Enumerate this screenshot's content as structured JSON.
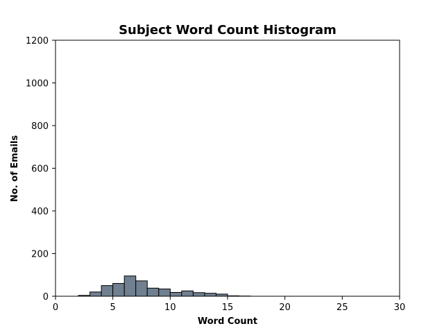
{
  "chart_data": {
    "type": "bar",
    "title": "Subject Word Count Histogram",
    "xlabel": "Word Count",
    "ylabel": "No. of Emails",
    "xlim": [
      0,
      30
    ],
    "ylim": [
      0,
      1200
    ],
    "xticks": [
      0,
      5,
      10,
      15,
      20,
      25,
      30
    ],
    "yticks": [
      0,
      200,
      400,
      600,
      800,
      1000,
      1200
    ],
    "grid": false,
    "bar_color": "#708090",
    "edge_color": "#000000",
    "bins": [
      {
        "x0": 2,
        "x1": 3,
        "count": 4
      },
      {
        "x0": 3,
        "x1": 4,
        "count": 20
      },
      {
        "x0": 4,
        "x1": 5,
        "count": 50
      },
      {
        "x0": 5,
        "x1": 6,
        "count": 60
      },
      {
        "x0": 6,
        "x1": 7,
        "count": 95
      },
      {
        "x0": 7,
        "x1": 8,
        "count": 72
      },
      {
        "x0": 8,
        "x1": 9,
        "count": 38
      },
      {
        "x0": 9,
        "x1": 10,
        "count": 34
      },
      {
        "x0": 10,
        "x1": 11,
        "count": 18
      },
      {
        "x0": 11,
        "x1": 12,
        "count": 25
      },
      {
        "x0": 12,
        "x1": 13,
        "count": 17
      },
      {
        "x0": 13,
        "x1": 14,
        "count": 14
      },
      {
        "x0": 14,
        "x1": 15,
        "count": 10
      },
      {
        "x0": 15,
        "x1": 16,
        "count": 2
      },
      {
        "x0": 16,
        "x1": 17,
        "count": 1
      }
    ]
  }
}
